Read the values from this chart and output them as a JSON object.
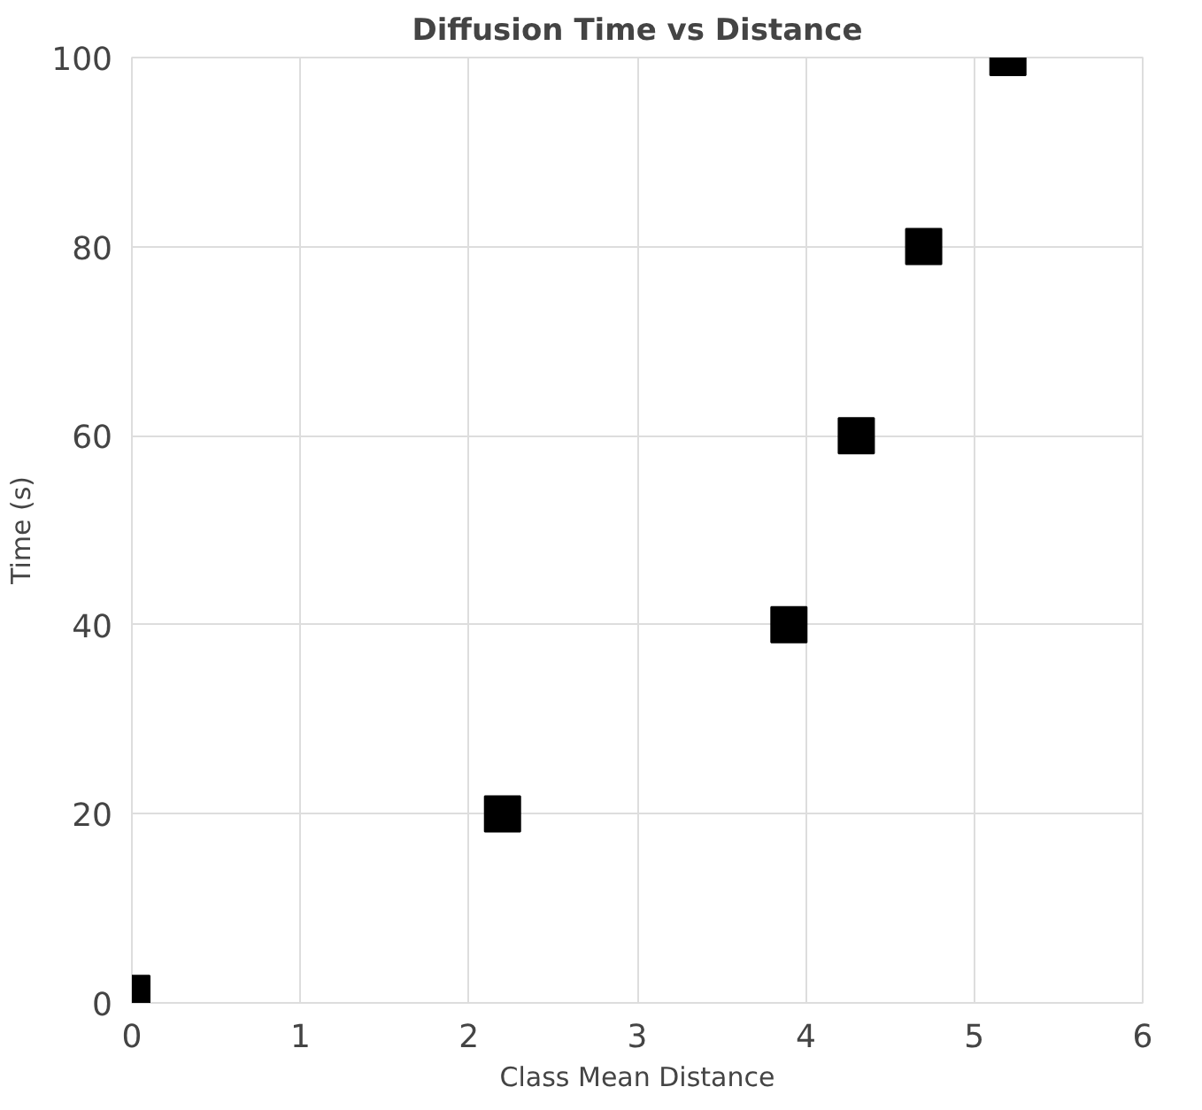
{
  "chart_data": {
    "type": "scatter",
    "title": "Diffusion Time vs Distance",
    "xlabel": "Class Mean Distance",
    "ylabel": "Time (s)",
    "x": [
      0,
      2.2,
      3.9,
      4.3,
      4.7,
      5.2
    ],
    "values": [
      1,
      20,
      40,
      60,
      80,
      100
    ],
    "color": "#000000",
    "marker": "square",
    "xlim": [
      0,
      6
    ],
    "xticks": [
      0,
      1,
      2,
      3,
      4,
      5,
      6
    ],
    "ylim": [
      0,
      100
    ],
    "yticks": [
      0,
      20,
      40,
      60,
      80,
      100
    ],
    "grid": true
  }
}
